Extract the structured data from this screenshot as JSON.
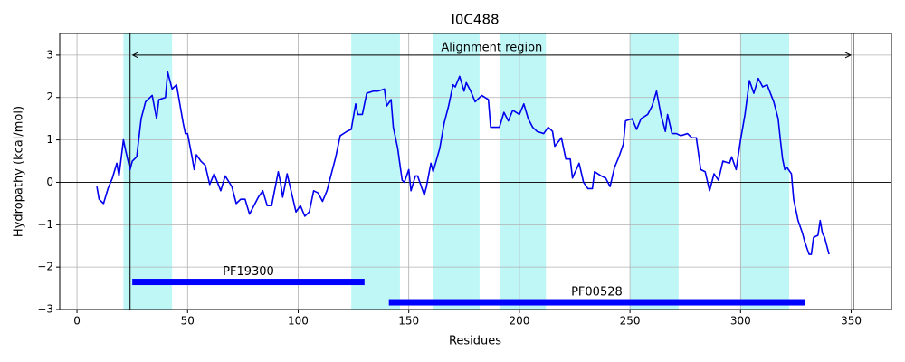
{
  "chart_data": {
    "type": "line",
    "title": "I0C488",
    "xlabel": "Residues",
    "ylabel": "Hydropathy (kcal/mol)",
    "color": "#0000ee",
    "x": [
      9,
      10,
      12,
      14,
      16,
      18,
      19,
      21,
      22,
      24,
      25,
      27,
      29,
      31,
      34,
      36,
      37,
      40,
      41,
      43,
      45,
      46,
      48,
      49,
      50,
      52,
      53,
      54,
      56,
      58,
      60,
      62,
      65,
      67,
      70,
      72,
      74,
      76,
      78,
      80,
      82,
      84,
      86,
      88,
      91,
      92,
      93,
      95,
      97,
      99,
      101,
      103,
      105,
      107,
      109,
      111,
      113,
      115,
      117,
      119,
      122,
      124,
      126,
      127,
      129,
      131,
      134,
      136,
      139,
      140,
      142,
      143,
      145,
      147,
      148,
      150,
      151,
      153,
      154,
      157,
      158,
      160,
      161,
      164,
      166,
      168,
      170,
      171,
      173,
      175,
      176,
      178,
      180,
      183,
      186,
      187,
      191,
      193,
      195,
      197,
      200,
      202,
      204,
      206,
      208,
      211,
      213,
      215,
      216,
      219,
      221,
      223,
      224,
      227,
      229,
      231,
      233,
      234,
      237,
      239,
      241,
      243,
      245,
      247,
      248,
      251,
      253,
      255,
      258,
      260,
      262,
      264,
      266,
      267,
      269,
      271,
      273,
      276,
      278,
      280,
      282,
      284,
      286,
      288,
      290,
      292,
      295,
      296,
      298,
      300,
      302,
      304,
      306,
      308,
      310,
      312,
      315,
      317,
      318,
      319,
      320,
      321,
      323,
      324,
      326,
      328,
      329,
      331,
      332,
      333,
      335,
      336,
      337,
      338,
      340
    ],
    "values": [
      -0.1,
      -0.4,
      -0.5,
      -0.15,
      0.1,
      0.45,
      0.15,
      1.0,
      0.75,
      0.3,
      0.5,
      0.6,
      1.5,
      1.9,
      2.05,
      1.5,
      1.95,
      2.0,
      2.6,
      2.2,
      2.3,
      2.0,
      1.4,
      1.15,
      1.15,
      0.6,
      0.3,
      0.65,
      0.5,
      0.4,
      -0.05,
      0.2,
      -0.2,
      0.15,
      -0.1,
      -0.5,
      -0.4,
      -0.4,
      -0.75,
      -0.55,
      -0.35,
      -0.2,
      -0.55,
      -0.55,
      0.25,
      0.0,
      -0.35,
      0.2,
      -0.25,
      -0.7,
      -0.55,
      -0.8,
      -0.7,
      -0.2,
      -0.25,
      -0.45,
      -0.2,
      0.2,
      0.6,
      1.1,
      1.2,
      1.25,
      1.85,
      1.6,
      1.6,
      2.1,
      2.15,
      2.15,
      2.2,
      1.8,
      1.95,
      1.3,
      0.8,
      0.05,
      0.0,
      0.3,
      -0.2,
      0.15,
      0.15,
      -0.3,
      -0.1,
      0.45,
      0.25,
      0.8,
      1.4,
      1.8,
      2.3,
      2.25,
      2.5,
      2.15,
      2.35,
      2.15,
      1.9,
      2.05,
      1.95,
      1.3,
      1.3,
      1.65,
      1.45,
      1.7,
      1.6,
      1.85,
      1.5,
      1.3,
      1.2,
      1.15,
      1.3,
      1.2,
      0.85,
      1.05,
      0.55,
      0.55,
      0.1,
      0.45,
      0.0,
      -0.15,
      -0.15,
      0.25,
      0.15,
      0.1,
      -0.1,
      0.35,
      0.6,
      0.9,
      1.45,
      1.5,
      1.25,
      1.5,
      1.6,
      1.8,
      2.15,
      1.6,
      1.2,
      1.6,
      1.15,
      1.15,
      1.1,
      1.15,
      1.05,
      1.05,
      0.3,
      0.25,
      -0.2,
      0.2,
      0.05,
      0.5,
      0.45,
      0.6,
      0.3,
      1.0,
      1.6,
      2.4,
      2.1,
      2.45,
      2.25,
      2.3,
      1.9,
      1.5,
      1.0,
      0.55,
      0.3,
      0.35,
      0.2,
      -0.4,
      -0.9,
      -1.2,
      -1.4,
      -1.7,
      -1.7,
      -1.3,
      -1.25,
      -0.9,
      -1.2,
      -1.3,
      -1.7
    ],
    "xlim": [
      -7.8,
      368.2
    ],
    "ylim": [
      -3,
      3.51
    ],
    "xticks": [
      0,
      50,
      100,
      150,
      200,
      250,
      300,
      350
    ],
    "yticks": [
      {
        "value": -3,
        "label": "−3"
      },
      {
        "value": -2,
        "label": "−2"
      },
      {
        "value": -1,
        "label": "−1"
      },
      0,
      1,
      2,
      3
    ],
    "grid": true,
    "zero_line": 0,
    "span_color": "#bff7f7",
    "spans": [
      [
        21,
        43
      ],
      [
        124,
        146
      ],
      [
        161,
        182
      ],
      [
        191,
        212
      ],
      [
        250,
        272
      ],
      [
        300,
        322
      ]
    ],
    "vlines": [
      24,
      351
    ],
    "annotation": {
      "text": "Alignment region",
      "x": [
        24,
        351
      ],
      "y": 3
    },
    "domain_color": "#0000ff",
    "domains": [
      {
        "name": "PF19300",
        "start": 25,
        "end": 130,
        "y": -2.35
      },
      {
        "name": "PF00528",
        "start": 141,
        "end": 329,
        "y": -2.83
      }
    ]
  }
}
